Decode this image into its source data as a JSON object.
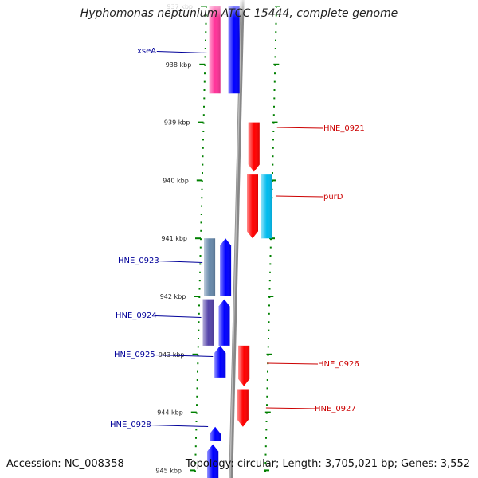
{
  "title": "Hyphomonas neptunium ATCC 15444, complete genome",
  "accession": "Accession: NC_008358",
  "topology": "Topology: circular; Length: 3,705,021 bp; Genes: 3,552",
  "colors": {
    "forward": "#0000ff",
    "reverse": "#ff0000",
    "xseA": "#ff3399",
    "purD": "#00bbee",
    "hne0923": "#6688aa",
    "hne0924": "#5544aa",
    "backbone": "#888888",
    "tick": "#008000",
    "left_label": "#000099",
    "right_label": "#cc0000"
  },
  "ticks": [
    {
      "label": "937 kbp",
      "kbp": 937
    },
    {
      "label": "938 kbp",
      "kbp": 938
    },
    {
      "label": "939 kbp",
      "kbp": 939
    },
    {
      "label": "940 kbp",
      "kbp": 940
    },
    {
      "label": "941 kbp",
      "kbp": 941
    },
    {
      "label": "942 kbp",
      "kbp": 942
    },
    {
      "label": "943 kbp",
      "kbp": 943
    },
    {
      "label": "944 kbp",
      "kbp": 944
    },
    {
      "label": "945 kbp",
      "kbp": 945
    }
  ],
  "genes": [
    {
      "name": "xseA",
      "strand": "+",
      "start_kbp": 937.0,
      "end_kbp": 938.5,
      "color": "#ff3399",
      "label": "xseA",
      "side": "left"
    },
    {
      "name": "gene-a",
      "strand": "+",
      "start_kbp": 937.0,
      "end_kbp": 938.5,
      "color": "#0000ff",
      "label": "",
      "side": "left"
    },
    {
      "name": "HNE_0921",
      "strand": "-",
      "start_kbp": 939.0,
      "end_kbp": 939.85,
      "color": "#ff0000",
      "label": "HNE_0921",
      "side": "right"
    },
    {
      "name": "purD",
      "strand": "-",
      "start_kbp": 939.9,
      "end_kbp": 941.0,
      "color": "#ff0000",
      "label": "purD",
      "side": "right"
    },
    {
      "name": "purD-hit",
      "strand": "-",
      "start_kbp": 939.9,
      "end_kbp": 941.0,
      "color": "#00bbee",
      "label": "",
      "side": "right"
    },
    {
      "name": "HNE_0923",
      "strand": "+",
      "start_kbp": 941.0,
      "end_kbp": 942.0,
      "color": "#6688aa",
      "label": "HNE_0923",
      "side": "left"
    },
    {
      "name": "gene-b",
      "strand": "+",
      "start_kbp": 941.0,
      "end_kbp": 942.0,
      "color": "#0000ff",
      "label": "",
      "side": "left"
    },
    {
      "name": "HNE_0924",
      "strand": "+",
      "start_kbp": 942.05,
      "end_kbp": 942.85,
      "color": "#5544aa",
      "label": "HNE_0924",
      "side": "left"
    },
    {
      "name": "gene-c",
      "strand": "+",
      "start_kbp": 942.05,
      "end_kbp": 942.85,
      "color": "#0000ff",
      "label": "",
      "side": "left"
    },
    {
      "name": "HNE_0925",
      "strand": "+",
      "start_kbp": 942.85,
      "end_kbp": 943.4,
      "color": "#0000ff",
      "label": "HNE_0925",
      "side": "left"
    },
    {
      "name": "HNE_0926",
      "strand": "-",
      "start_kbp": 942.85,
      "end_kbp": 943.55,
      "color": "#ff0000",
      "label": "HNE_0926",
      "side": "right"
    },
    {
      "name": "HNE_0927",
      "strand": "-",
      "start_kbp": 943.6,
      "end_kbp": 944.25,
      "color": "#ff0000",
      "label": "HNE_0927",
      "side": "right"
    },
    {
      "name": "HNE_0928",
      "strand": "+",
      "start_kbp": 944.25,
      "end_kbp": 944.5,
      "color": "#0000ff",
      "label": "HNE_0928",
      "side": "left"
    },
    {
      "name": "gene-d",
      "strand": "+",
      "start_kbp": 944.55,
      "end_kbp": 945.2,
      "color": "#0000ff",
      "label": "",
      "side": "left"
    }
  ]
}
